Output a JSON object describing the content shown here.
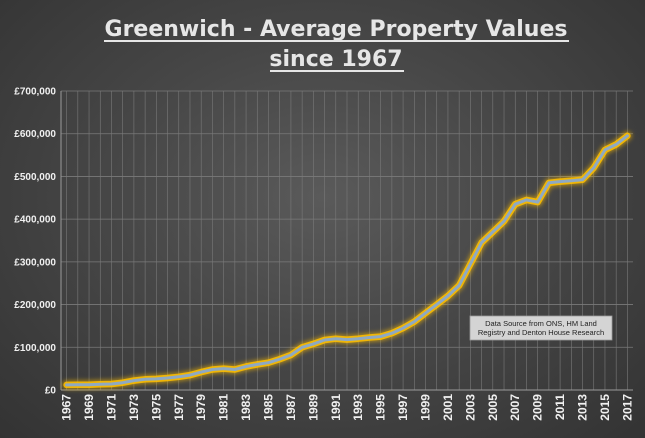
{
  "chart_data": {
    "type": "line",
    "title_lines": [
      "Greenwich - Average Property Values",
      "since 1967"
    ],
    "xlabel": "",
    "ylabel": "",
    "ylim": [
      0,
      700000
    ],
    "y_ticks": [
      {
        "value": 0,
        "label": "£0"
      },
      {
        "value": 100000,
        "label": "£100,000"
      },
      {
        "value": 200000,
        "label": "£200,000"
      },
      {
        "value": 300000,
        "label": "£300,000"
      },
      {
        "value": 400000,
        "label": "£400,000"
      },
      {
        "value": 500000,
        "label": "£500,000"
      },
      {
        "value": 600000,
        "label": "£600,000"
      },
      {
        "value": 700000,
        "label": "£700,000"
      }
    ],
    "x_tick_labels": [
      "1967",
      "1969",
      "1971",
      "1973",
      "1975",
      "1977",
      "1979",
      "1981",
      "1983",
      "1985",
      "1987",
      "1989",
      "1991",
      "1993",
      "1995",
      "1997",
      "1999",
      "2001",
      "2003",
      "2005",
      "2007",
      "2009",
      "2011",
      "2013",
      "2015",
      "2017"
    ],
    "grid": true,
    "legend": "none",
    "annotation": {
      "lines": [
        "Data Source from ONS, HM Land",
        "Registry and Denton House Research"
      ],
      "position": "lower-right"
    },
    "series": [
      {
        "name": "Average Property Value",
        "x": [
          1967,
          1968,
          1969,
          1970,
          1971,
          1972,
          1973,
          1974,
          1975,
          1976,
          1977,
          1978,
          1979,
          1980,
          1981,
          1982,
          1983,
          1984,
          1985,
          1986,
          1987,
          1988,
          1989,
          1990,
          1991,
          1992,
          1993,
          1994,
          1995,
          1996,
          1997,
          1998,
          1999,
          2000,
          2001,
          2002,
          2003,
          2004,
          2005,
          2006,
          2007,
          2008,
          2009,
          2010,
          2011,
          2012,
          2013,
          2014,
          2015,
          2016,
          2017
        ],
        "values": [
          12000,
          12500,
          12500,
          13500,
          14000,
          17000,
          22000,
          25000,
          26000,
          28000,
          31000,
          35000,
          42000,
          48000,
          50000,
          48000,
          55000,
          60000,
          64000,
          72000,
          82000,
          100000,
          108000,
          117000,
          120000,
          118000,
          120000,
          123000,
          125000,
          133000,
          145000,
          160000,
          180000,
          200000,
          220000,
          245000,
          295000,
          345000,
          370000,
          395000,
          435000,
          445000,
          440000,
          485000,
          488000,
          490000,
          492000,
          520000,
          562000,
          575000,
          595000
        ]
      }
    ],
    "colors": {
      "line": "#8ea9c3",
      "glow": "#ffc000",
      "grid": "#7a7a7a",
      "note_bg": "#d4d4d4"
    }
  }
}
